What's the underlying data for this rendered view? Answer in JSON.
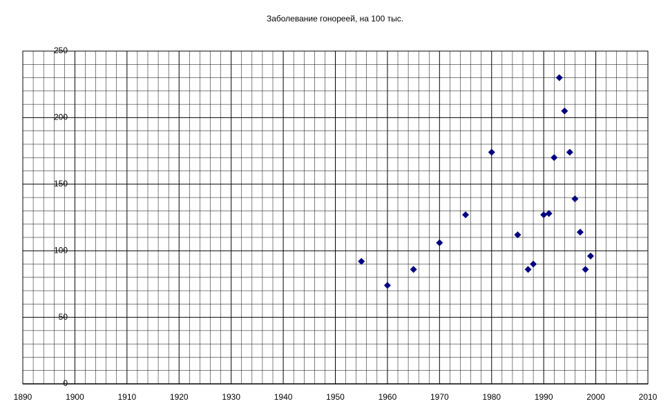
{
  "chart_data": {
    "type": "scatter",
    "title": "Заболевание гонореей, на 100 тыс.",
    "x": [
      1955,
      1960,
      1965,
      1970,
      1975,
      1980,
      1985,
      1987,
      1988,
      1990,
      1991,
      1992,
      1993,
      1994,
      1995,
      1996,
      1997,
      1998,
      1999
    ],
    "values": [
      92,
      74,
      86,
      106,
      127,
      174,
      112,
      86,
      90,
      127,
      128,
      170,
      230,
      205,
      174,
      139,
      114,
      86,
      96
    ],
    "color": "#000080",
    "xlim": [
      1890,
      2010
    ],
    "xticks": [
      1890,
      1900,
      1910,
      1920,
      1930,
      1940,
      1950,
      1960,
      1970,
      1980,
      1990,
      2000,
      2010
    ],
    "ylim": [
      0,
      250
    ],
    "yticks": [
      0,
      50,
      100,
      150,
      200,
      250
    ],
    "grid": true
  }
}
